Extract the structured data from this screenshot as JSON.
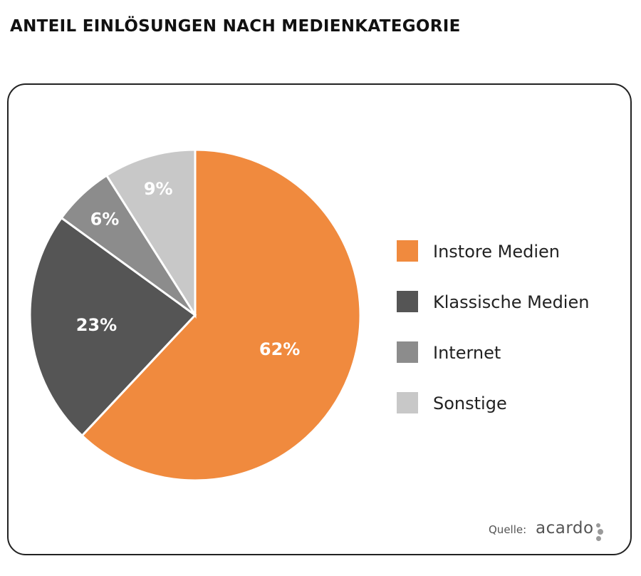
{
  "chart_data": {
    "type": "pie",
    "title": "ANTEIL EINLÖSUNGEN NACH MEDIENKATEGORIE",
    "slices": [
      {
        "label": "Instore Medien",
        "value": 62,
        "display": "62%",
        "color": "#F08A3E"
      },
      {
        "label": "Klassische Medien",
        "value": 23,
        "display": "23%",
        "color": "#555555"
      },
      {
        "label": "Internet",
        "value": 6,
        "display": "6%",
        "color": "#8C8C8C"
      },
      {
        "label": "Sonstige",
        "value": 9,
        "display": "9%",
        "color": "#C8C8C8"
      }
    ],
    "legend_placement": "right",
    "start": "top",
    "direction": "clockwise"
  },
  "source": {
    "prefix": "Quelle:",
    "brand": "acardo"
  }
}
